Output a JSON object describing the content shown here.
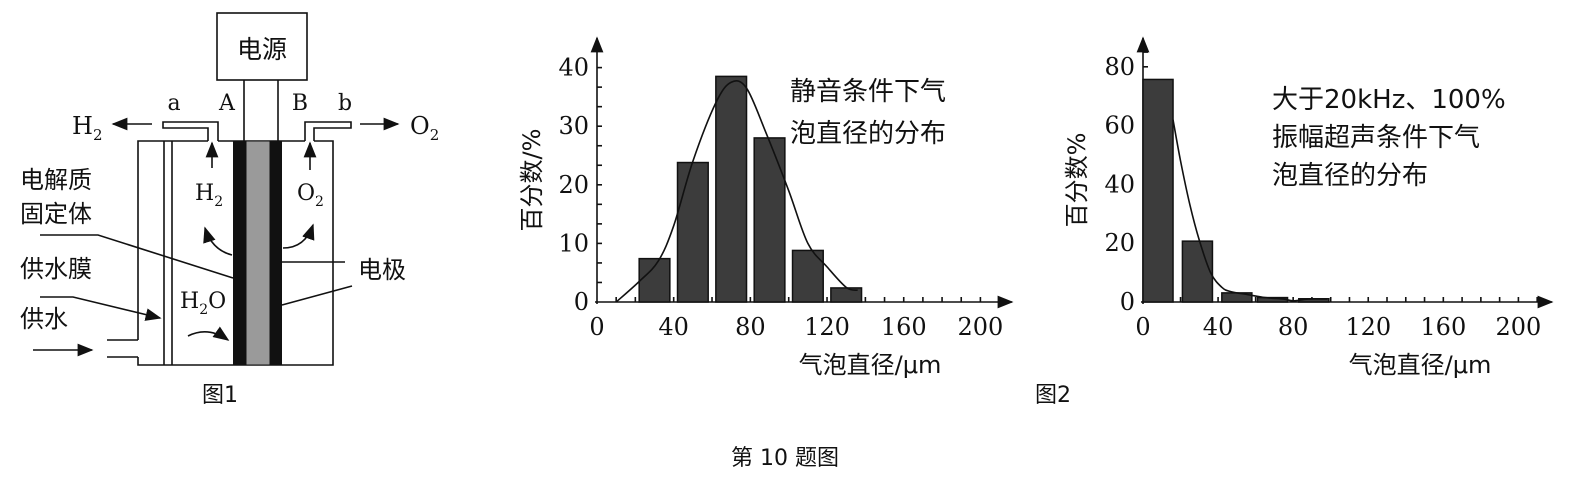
{
  "figure_caption": "第 10 题图",
  "figure1": {
    "caption": "图1",
    "power_label": "电源",
    "pipe_a": "a",
    "electrode_A": "A",
    "electrode_B": "B",
    "pipe_b": "b",
    "h2_out": "H",
    "o2_out": "O",
    "sub2": "2",
    "h2_inner": "H",
    "o2_inner": "O",
    "electrolyte_line1": "电解质",
    "electrolyte_line2": "固定体",
    "membrane": "供水膜",
    "water_supply": "供水",
    "electrode": "电极",
    "water_h": "H",
    "water_o": "O"
  },
  "figure2_caption": "图2",
  "chart_data": [
    {
      "type": "bar",
      "annotation": [
        "静音条件下气",
        "泡直径的分布"
      ],
      "xlabel": "气泡直径/μm",
      "ylabel": "百分数/%",
      "xlim": [
        0,
        215
      ],
      "ylim": [
        0,
        44
      ],
      "xticks": [
        0,
        40,
        80,
        120,
        160,
        200
      ],
      "yticks": [
        0,
        10,
        20,
        30,
        40
      ],
      "bins": [
        [
          22,
          38
        ],
        [
          42,
          58
        ],
        [
          62,
          78
        ],
        [
          82,
          98
        ],
        [
          102,
          118
        ],
        [
          122,
          138
        ]
      ],
      "values": [
        7.4,
        23.8,
        38.5,
        28,
        8.8,
        2.4
      ],
      "curve": [
        [
          10,
          0
        ],
        [
          22,
          3.5
        ],
        [
          32,
          7
        ],
        [
          40,
          13
        ],
        [
          50,
          24
        ],
        [
          62,
          34
        ],
        [
          70,
          37.5
        ],
        [
          78,
          36.5
        ],
        [
          88,
          29
        ],
        [
          100,
          19
        ],
        [
          110,
          10
        ],
        [
          120,
          6
        ],
        [
          130,
          2.5
        ],
        [
          136,
          2
        ]
      ]
    },
    {
      "type": "bar",
      "annotation": [
        "大于20kHz、100%",
        "振幅超声条件下气",
        "泡直径的分布"
      ],
      "xlabel": "气泡直径/μm",
      "ylabel": "百分数%",
      "xlim": [
        0,
        215
      ],
      "ylim": [
        0,
        88
      ],
      "xticks": [
        0,
        40,
        80,
        120,
        160,
        200
      ],
      "yticks": [
        0,
        20,
        40,
        60,
        80
      ],
      "bins": [
        [
          0,
          16
        ],
        [
          21,
          37
        ],
        [
          42,
          58
        ],
        [
          61,
          77
        ],
        [
          83,
          99
        ]
      ],
      "values": [
        75.7,
        20.7,
        3.1,
        1.5,
        1.1
      ],
      "curve": [
        [
          16,
          62
        ],
        [
          20,
          48
        ],
        [
          25,
          33
        ],
        [
          30,
          21
        ],
        [
          36,
          10
        ],
        [
          42,
          5
        ],
        [
          47,
          3.5
        ],
        [
          56,
          2.5
        ],
        [
          65,
          1.5
        ],
        [
          75,
          1
        ],
        [
          80,
          0.4
        ],
        [
          88,
          1
        ],
        [
          98,
          1
        ]
      ]
    }
  ]
}
